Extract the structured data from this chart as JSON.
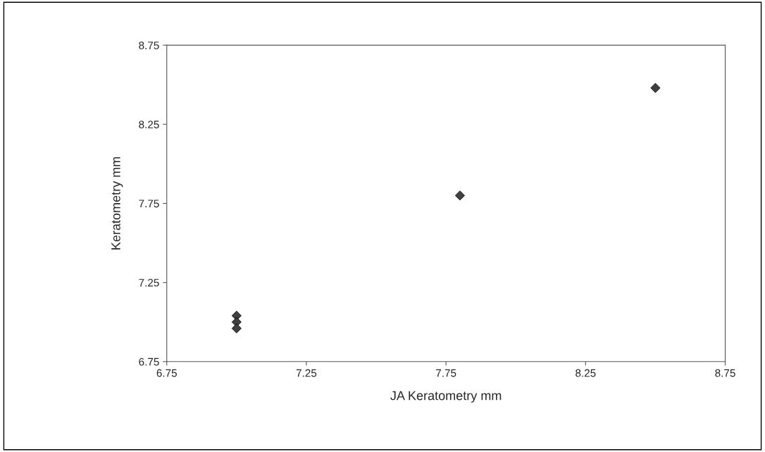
{
  "chart_data": {
    "type": "scatter",
    "xlabel": "JA Keratometry mm",
    "ylabel": "Keratometry mm",
    "x": [
      7.0,
      7.0,
      7.0,
      7.8,
      8.5
    ],
    "series": [
      {
        "color": "#404040",
        "values": [
          7.04,
          7.0,
          6.96,
          7.8,
          8.48
        ]
      }
    ],
    "xlim": [
      6.75,
      8.75
    ],
    "xticks": [
      6.75,
      7.25,
      7.75,
      8.25,
      8.75
    ],
    "ylim": [
      6.75,
      8.75
    ],
    "yticks": [
      6.75,
      7.25,
      7.75,
      8.25,
      8.75
    ],
    "marker": "diamond",
    "grid": false,
    "legend": false
  }
}
